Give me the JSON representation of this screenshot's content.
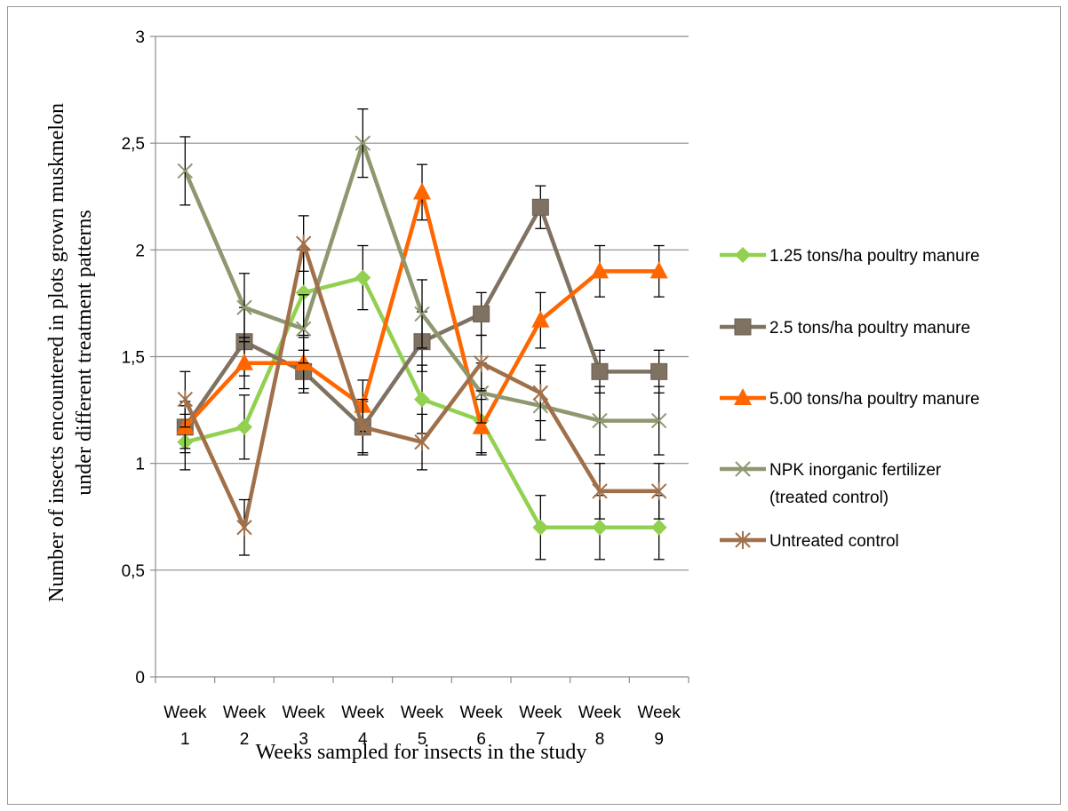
{
  "chart_data": {
    "type": "line",
    "title": "",
    "xlabel": "Weeks sampled for insects in the study",
    "ylabel": "Number of insects encountered in plots grown muskmelon under different treatment patterns",
    "ylim": [
      0,
      3
    ],
    "yticks": [
      0,
      0.5,
      1,
      1.5,
      2,
      2.5,
      3
    ],
    "ytick_labels": [
      "0",
      "0,5",
      "1",
      "1,5",
      "2",
      "2,5",
      "3"
    ],
    "grid": "horizontal",
    "legend_position": "right",
    "categories": [
      [
        "Week",
        "1"
      ],
      [
        "Week",
        "2"
      ],
      [
        "Week",
        "3"
      ],
      [
        "Week",
        "4"
      ],
      [
        "Week",
        "5"
      ],
      [
        "Week",
        "6"
      ],
      [
        "Week",
        "7"
      ],
      [
        "Week",
        "8"
      ],
      [
        "Week",
        "9"
      ]
    ],
    "series": [
      {
        "name": "1.25 tons/ha poultry manure",
        "legend_lines": [
          "1.25 tons/ha poultry manure"
        ],
        "color": "#92d050",
        "marker": "diamond",
        "values": [
          1.1,
          1.17,
          1.8,
          1.87,
          1.3,
          1.2,
          0.7,
          0.7,
          0.7
        ],
        "error": [
          0.13,
          0.15,
          0.2,
          0.15,
          0.16,
          0.15,
          0.15,
          0.15,
          0.15
        ]
      },
      {
        "name": "2.5 tons/ha poultry manure",
        "legend_lines": [
          "2.5 tons/ha poultry manure"
        ],
        "color": "#7f7262",
        "marker": "square",
        "values": [
          1.17,
          1.57,
          1.43,
          1.17,
          1.57,
          1.7,
          2.2,
          1.43,
          1.43
        ],
        "error": [
          0.12,
          0.16,
          0.1,
          0.12,
          0.14,
          0.1,
          0.1,
          0.1,
          0.1
        ]
      },
      {
        "name": "5.00 tons/ha poultry manure",
        "legend_lines": [
          "5.00 tons/ha poultry manure"
        ],
        "color": "#ff6600",
        "marker": "triangle",
        "values": [
          1.17,
          1.47,
          1.47,
          1.27,
          2.27,
          1.17,
          1.67,
          1.9,
          1.9
        ],
        "error": [
          0.1,
          0.12,
          0.12,
          0.12,
          0.13,
          0.13,
          0.13,
          0.12,
          0.12
        ]
      },
      {
        "name": "NPK inorganic fertilizer (treated control)",
        "legend_lines": [
          "NPK inorganic fertilizer",
          "(treated control)"
        ],
        "color": "#8e9870",
        "marker": "x",
        "values": [
          2.37,
          1.73,
          1.63,
          2.5,
          1.7,
          1.33,
          1.27,
          1.2,
          1.2
        ],
        "error": [
          0.16,
          0.16,
          0.16,
          0.16,
          0.16,
          0.14,
          0.16,
          0.16,
          0.16
        ]
      },
      {
        "name": "Untreated control",
        "legend_lines": [
          "Untreated control"
        ],
        "color": "#a0704a",
        "marker": "star",
        "values": [
          1.3,
          0.7,
          2.03,
          1.17,
          1.1,
          1.47,
          1.33,
          0.87,
          0.87
        ],
        "error": [
          0.13,
          0.13,
          0.13,
          0.13,
          0.13,
          0.13,
          0.13,
          0.13,
          0.13
        ]
      }
    ]
  }
}
